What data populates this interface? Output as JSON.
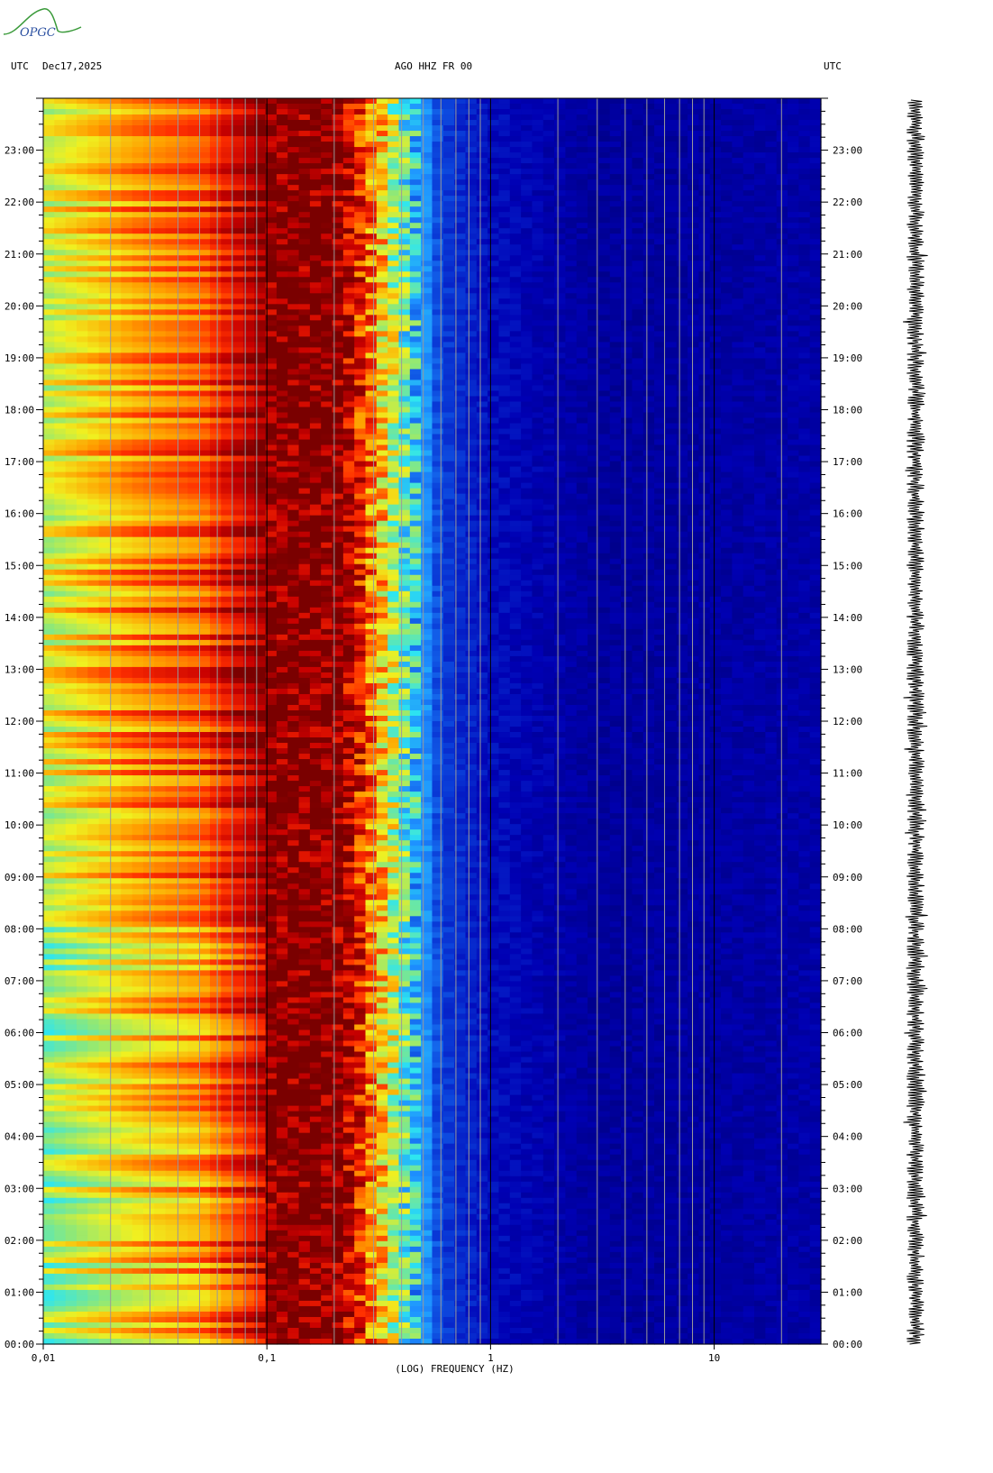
{
  "header": {
    "left_tz": "UTC",
    "date": "Dec17,2025",
    "station": "AGO HHZ FR 00",
    "right_tz": "UTC"
  },
  "logo": {
    "text": "OPGC",
    "color": "#3a9a3a"
  },
  "chart_data": {
    "type": "heatmap",
    "title": "AGO HHZ FR 00",
    "xlabel": "(LOG) FREQUENCY (HZ)",
    "xscale": "log",
    "xlim": [
      0.01,
      30
    ],
    "x_ticks": [
      {
        "value": 0.01,
        "label": "0,01"
      },
      {
        "value": 0.1,
        "label": "0,1"
      },
      {
        "value": 1,
        "label": "1"
      },
      {
        "value": 10,
        "label": "10"
      }
    ],
    "ylabel": "UTC",
    "ylim_hours": [
      0,
      24
    ],
    "y_ticks": [
      "00:00",
      "01:00",
      "02:00",
      "03:00",
      "04:00",
      "05:00",
      "06:00",
      "07:00",
      "08:00",
      "09:00",
      "10:00",
      "11:00",
      "12:00",
      "13:00",
      "14:00",
      "15:00",
      "16:00",
      "17:00",
      "18:00",
      "19:00",
      "20:00",
      "21:00",
      "22:00",
      "23:00"
    ],
    "colormap": [
      "#00007a",
      "#0000b4",
      "#0a3cd8",
      "#1e90ff",
      "#2ee6f0",
      "#8ee878",
      "#f0f020",
      "#ffa000",
      "#ff3000",
      "#c80000",
      "#7a0000"
    ],
    "spectral_profile": [
      {
        "freq": 0.01,
        "level": 0.58
      },
      {
        "freq": 0.025,
        "level": 0.72
      },
      {
        "freq": 0.05,
        "level": 0.78
      },
      {
        "freq": 0.075,
        "level": 0.9
      },
      {
        "freq": 0.1,
        "level": 1.0
      },
      {
        "freq": 0.2,
        "level": 1.0
      },
      {
        "freq": 0.26,
        "level": 0.84
      },
      {
        "freq": 0.32,
        "level": 0.66
      },
      {
        "freq": 0.42,
        "level": 0.44
      },
      {
        "freq": 0.6,
        "level": 0.2
      },
      {
        "freq": 1.0,
        "level": 0.12
      },
      {
        "freq": 3.0,
        "level": 0.06
      },
      {
        "freq": 30.0,
        "level": 0.08
      }
    ],
    "grid": true,
    "trace": "seismogram"
  }
}
